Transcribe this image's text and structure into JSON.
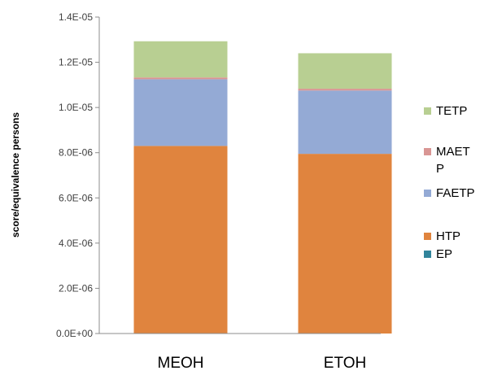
{
  "chart_data": {
    "type": "bar",
    "stacked": true,
    "categories": [
      "MEOH",
      "ETOH"
    ],
    "ylabel": "score/equivalence persons",
    "ylim": [
      0,
      1.4e-05
    ],
    "yticks": [
      0,
      2e-06,
      4e-06,
      6e-06,
      8e-06,
      1e-05,
      1.2e-05,
      1.4e-05
    ],
    "ytick_labels": [
      "0.0E+00",
      "2.0E-06",
      "4.0E-06",
      "6.0E-06",
      "8.0E-06",
      "1.0E-05",
      "1.2E-05",
      "1.4E-05"
    ],
    "grid": false,
    "legend_position": "right",
    "series": [
      {
        "name": "EP",
        "color": "#31849b",
        "values": [
          0.0,
          0.0
        ]
      },
      {
        "name": "HTP",
        "color": "#e0843e",
        "values": [
          8.3e-06,
          7.95e-06
        ]
      },
      {
        "name": "FAETP",
        "color": "#94aad5",
        "values": [
          2.95e-06,
          2.8e-06
        ]
      },
      {
        "name": "MAETP",
        "color": "#d99694",
        "values": [
          8e-08,
          8e-08
        ]
      },
      {
        "name": "TETP",
        "color": "#b8cf92",
        "values": [
          1.6e-06,
          1.57e-06
        ]
      }
    ],
    "legend": [
      {
        "label_lines": [
          "TETP"
        ],
        "color": "#b8cf92"
      },
      {
        "label_lines": [
          "MAET",
          "P"
        ],
        "color": "#d99694"
      },
      {
        "label_lines": [
          "FAETP"
        ],
        "color": "#94aad5"
      },
      {
        "label_lines": [
          "HTP"
        ],
        "color": "#e0843e"
      },
      {
        "label_lines": [
          "EP"
        ],
        "color": "#31849b"
      }
    ]
  }
}
